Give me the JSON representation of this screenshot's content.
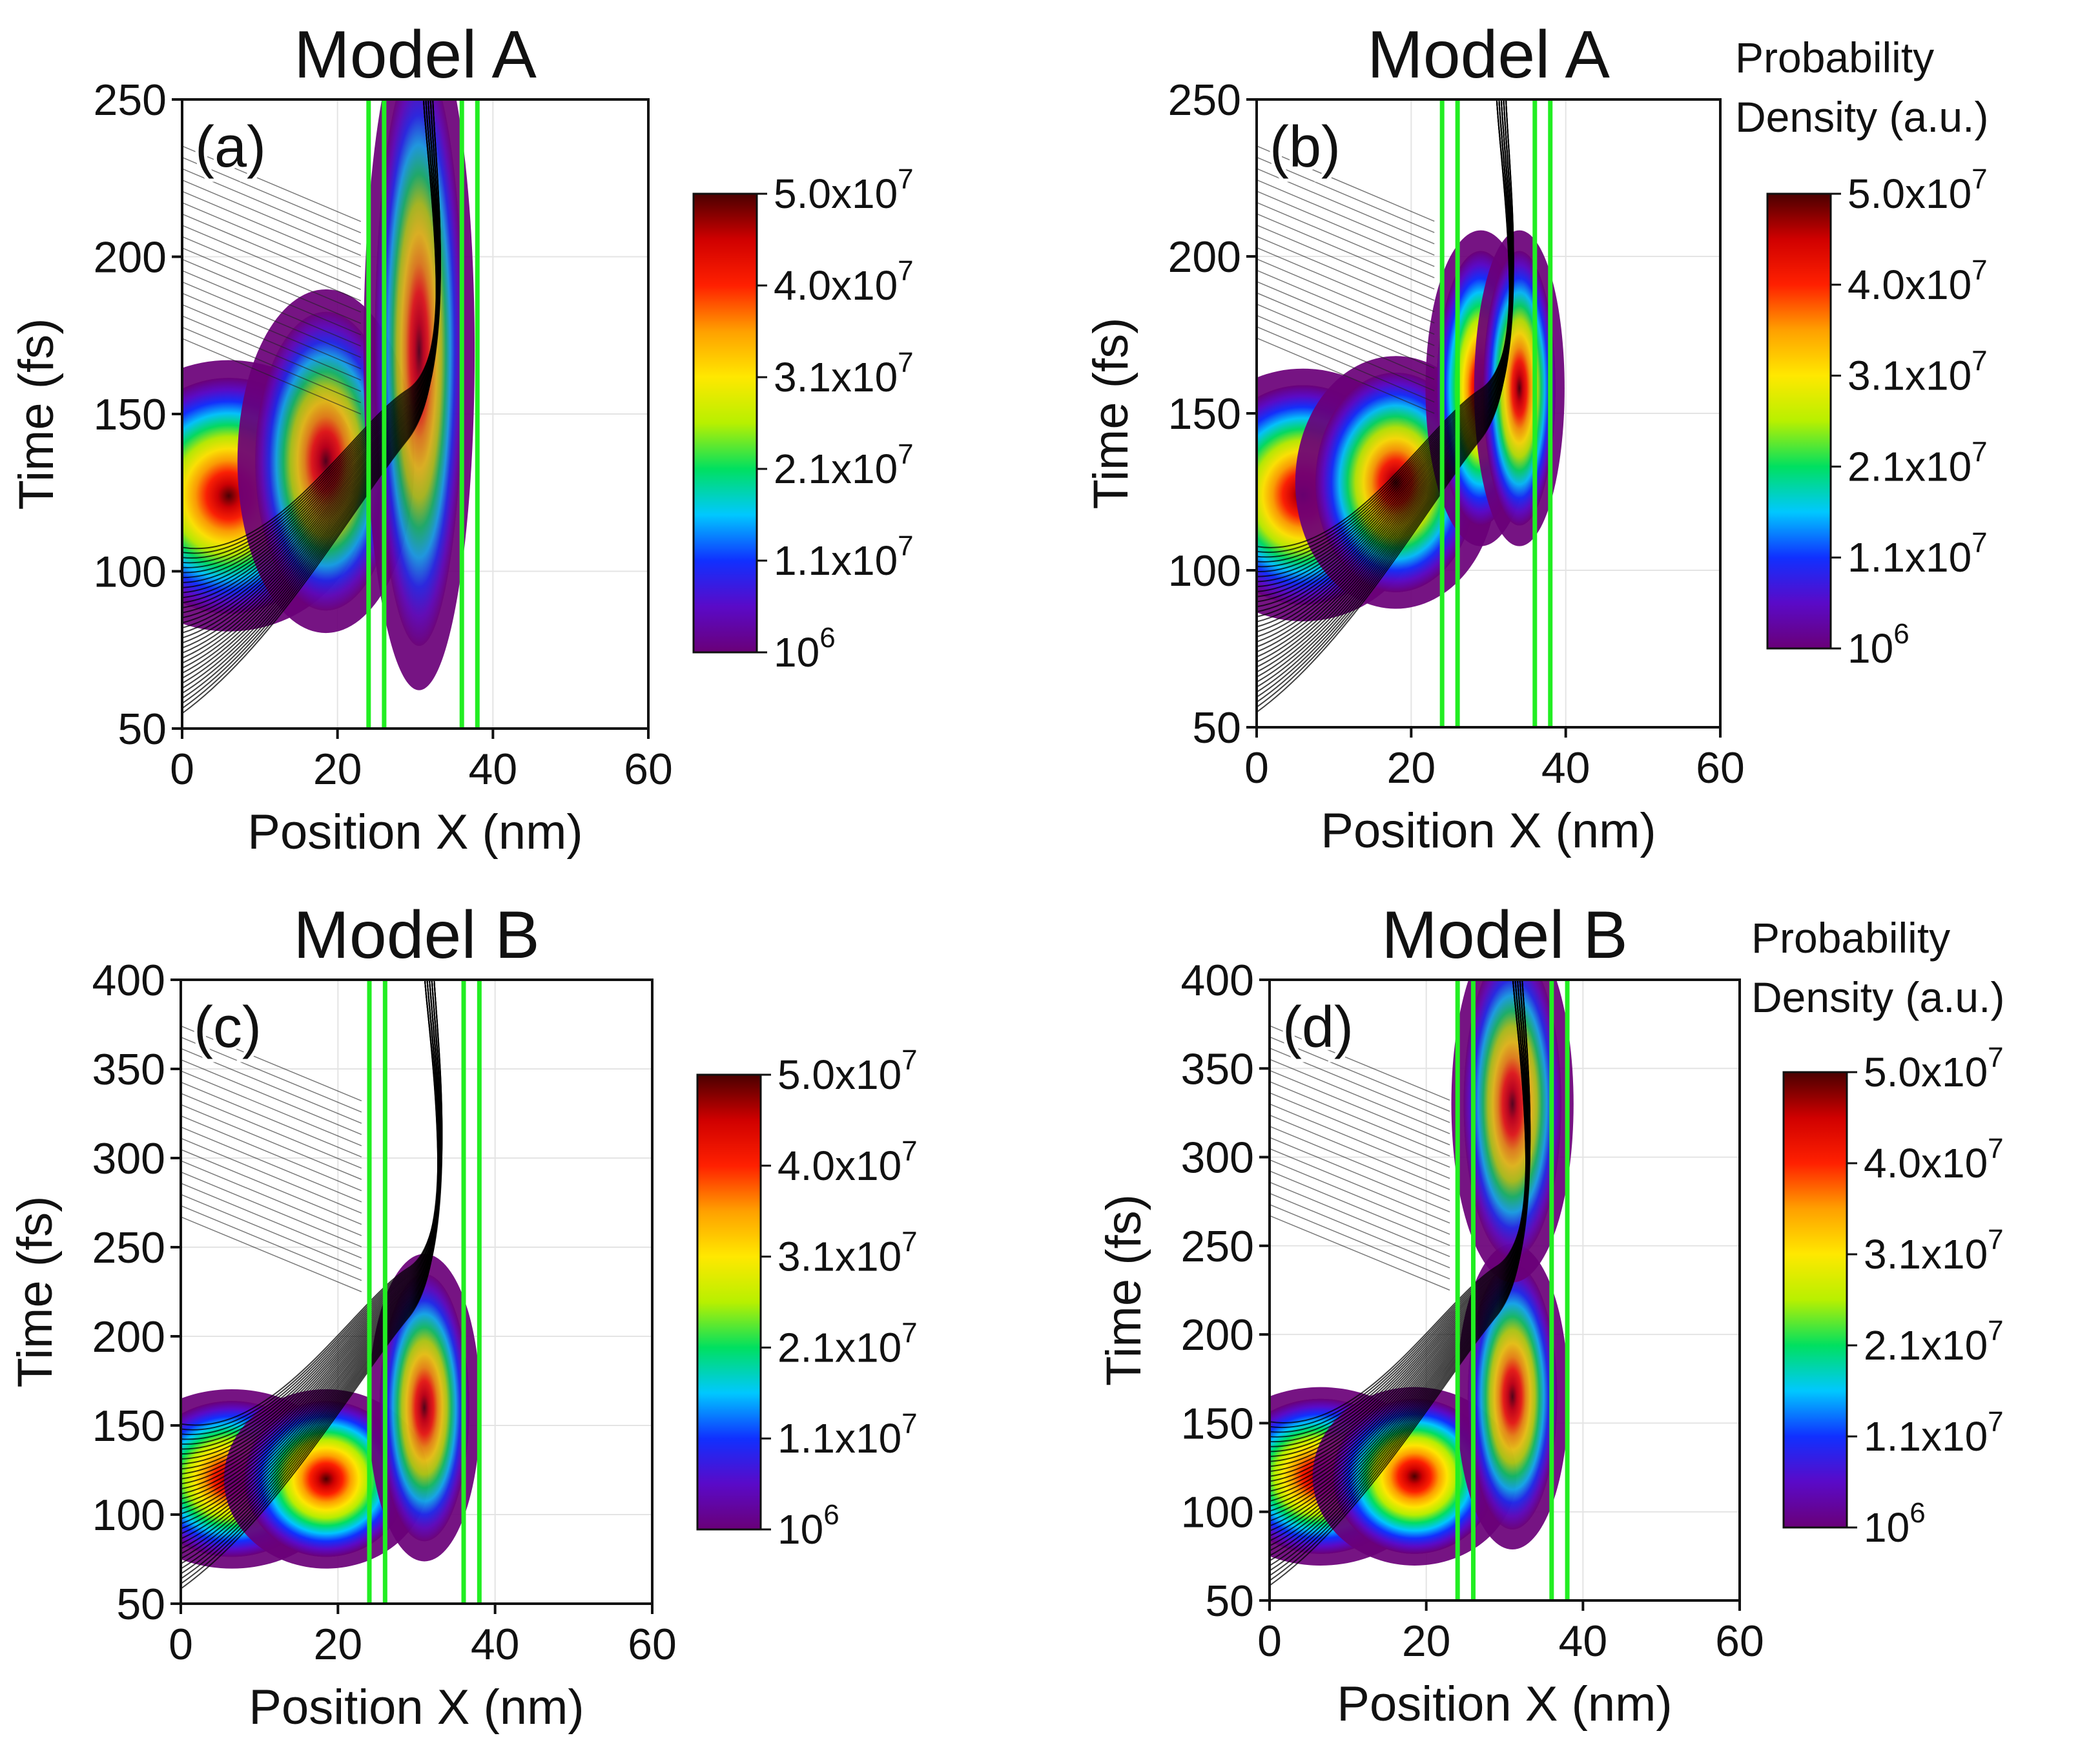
{
  "figure": {
    "colorbar_heading": [
      "Probability",
      "Density (a.u.)"
    ]
  },
  "colorbar": {
    "ticks": [
      "5.0x10",
      "4.0x10",
      "3.1x10",
      "2.1x10",
      "1.1x10",
      "10"
    ],
    "exponents": [
      "7",
      "7",
      "7",
      "7",
      "7",
      "6"
    ],
    "colors": [
      "#6a0078",
      "#5a0ac8",
      "#1030ff",
      "#00c8ff",
      "#00e060",
      "#b8f000",
      "#ffe800",
      "#ffa000",
      "#ff2000",
      "#d00000",
      "#4a0000"
    ]
  },
  "chart_data": [
    {
      "id": "a",
      "panel_label": "(a)",
      "type": "heatmap",
      "title": "Model A",
      "xlabel": "Position X (nm)",
      "ylabel": "Time (fs)",
      "xlim": [
        0,
        60
      ],
      "ylim": [
        50,
        250
      ],
      "xticks": [
        "0",
        "20",
        "40",
        "60"
      ],
      "yticks": [
        "50",
        "100",
        "150",
        "200",
        "250"
      ],
      "colorbar_range": [
        1000000,
        50000000
      ],
      "barriers_nm": [
        24,
        26,
        36,
        38
      ],
      "has_heading": false,
      "blobs": [
        {
          "x": 6,
          "t": 124,
          "peak": 0.82,
          "sx": 5.5,
          "st": 30
        },
        {
          "x": 18.5,
          "t": 135,
          "peak": 0.45,
          "sx": 3.5,
          "st": 38
        },
        {
          "x": 30.5,
          "t": 170,
          "peak": 0.35,
          "sx": 2.2,
          "st": 75
        }
      ]
    },
    {
      "id": "b",
      "panel_label": "(b)",
      "type": "heatmap",
      "title": "Model A",
      "xlabel": "Position X (nm)",
      "ylabel": "Time (fs)",
      "xlim": [
        0,
        60
      ],
      "ylim": [
        50,
        250
      ],
      "xticks": [
        "0",
        "20",
        "40",
        "60"
      ],
      "yticks": [
        "50",
        "100",
        "150",
        "200",
        "250"
      ],
      "colorbar_range": [
        1000000,
        50000000
      ],
      "barriers_nm": [
        24,
        26,
        36,
        38
      ],
      "has_heading": true,
      "blobs": [
        {
          "x": 6,
          "t": 124,
          "peak": 0.82,
          "sx": 5,
          "st": 28
        },
        {
          "x": 18,
          "t": 128,
          "peak": 0.75,
          "sx": 4,
          "st": 28
        },
        {
          "x": 29,
          "t": 158,
          "peak": 0.85,
          "sx": 2.2,
          "st": 35
        },
        {
          "x": 34,
          "t": 158,
          "peak": 0.7,
          "sx": 1.8,
          "st": 35
        }
      ]
    },
    {
      "id": "c",
      "panel_label": "(c)",
      "type": "heatmap",
      "title": "Model B",
      "xlabel": "Position X (nm)",
      "ylabel": "Time (fs)",
      "xlim": [
        0,
        60
      ],
      "ylim": [
        50,
        400
      ],
      "xticks": [
        "0",
        "20",
        "40",
        "60"
      ],
      "yticks": [
        "50",
        "100",
        "150",
        "200",
        "250",
        "300",
        "350",
        "400"
      ],
      "colorbar_range": [
        1000000,
        50000000
      ],
      "barriers_nm": [
        24,
        26,
        36,
        38
      ],
      "has_heading": false,
      "blobs": [
        {
          "x": 6.5,
          "t": 120,
          "peak": 0.9,
          "sx": 4.5,
          "st": 35
        },
        {
          "x": 18.5,
          "t": 120,
          "peak": 0.88,
          "sx": 4,
          "st": 35
        },
        {
          "x": 31,
          "t": 160,
          "peak": 0.5,
          "sx": 2.2,
          "st": 60
        }
      ]
    },
    {
      "id": "d",
      "panel_label": "(d)",
      "type": "heatmap",
      "title": "Model B",
      "xlabel": "Position X (nm)",
      "ylabel": "Time (fs)",
      "xlim": [
        0,
        60
      ],
      "ylim": [
        50,
        400
      ],
      "xticks": [
        "0",
        "20",
        "40",
        "60"
      ],
      "yticks": [
        "50",
        "100",
        "150",
        "200",
        "250",
        "300",
        "350",
        "400"
      ],
      "colorbar_range": [
        1000000,
        50000000
      ],
      "barriers_nm": [
        24,
        26,
        36,
        38
      ],
      "has_heading": true,
      "blobs": [
        {
          "x": 6.5,
          "t": 120,
          "peak": 0.9,
          "sx": 4.5,
          "st": 35
        },
        {
          "x": 18.5,
          "t": 120,
          "peak": 0.88,
          "sx": 4,
          "st": 35
        },
        {
          "x": 31,
          "t": 165,
          "peak": 0.5,
          "sx": 2.2,
          "st": 60
        },
        {
          "x": 31,
          "t": 330,
          "peak": 0.4,
          "sx": 2.4,
          "st": 70
        }
      ]
    }
  ]
}
